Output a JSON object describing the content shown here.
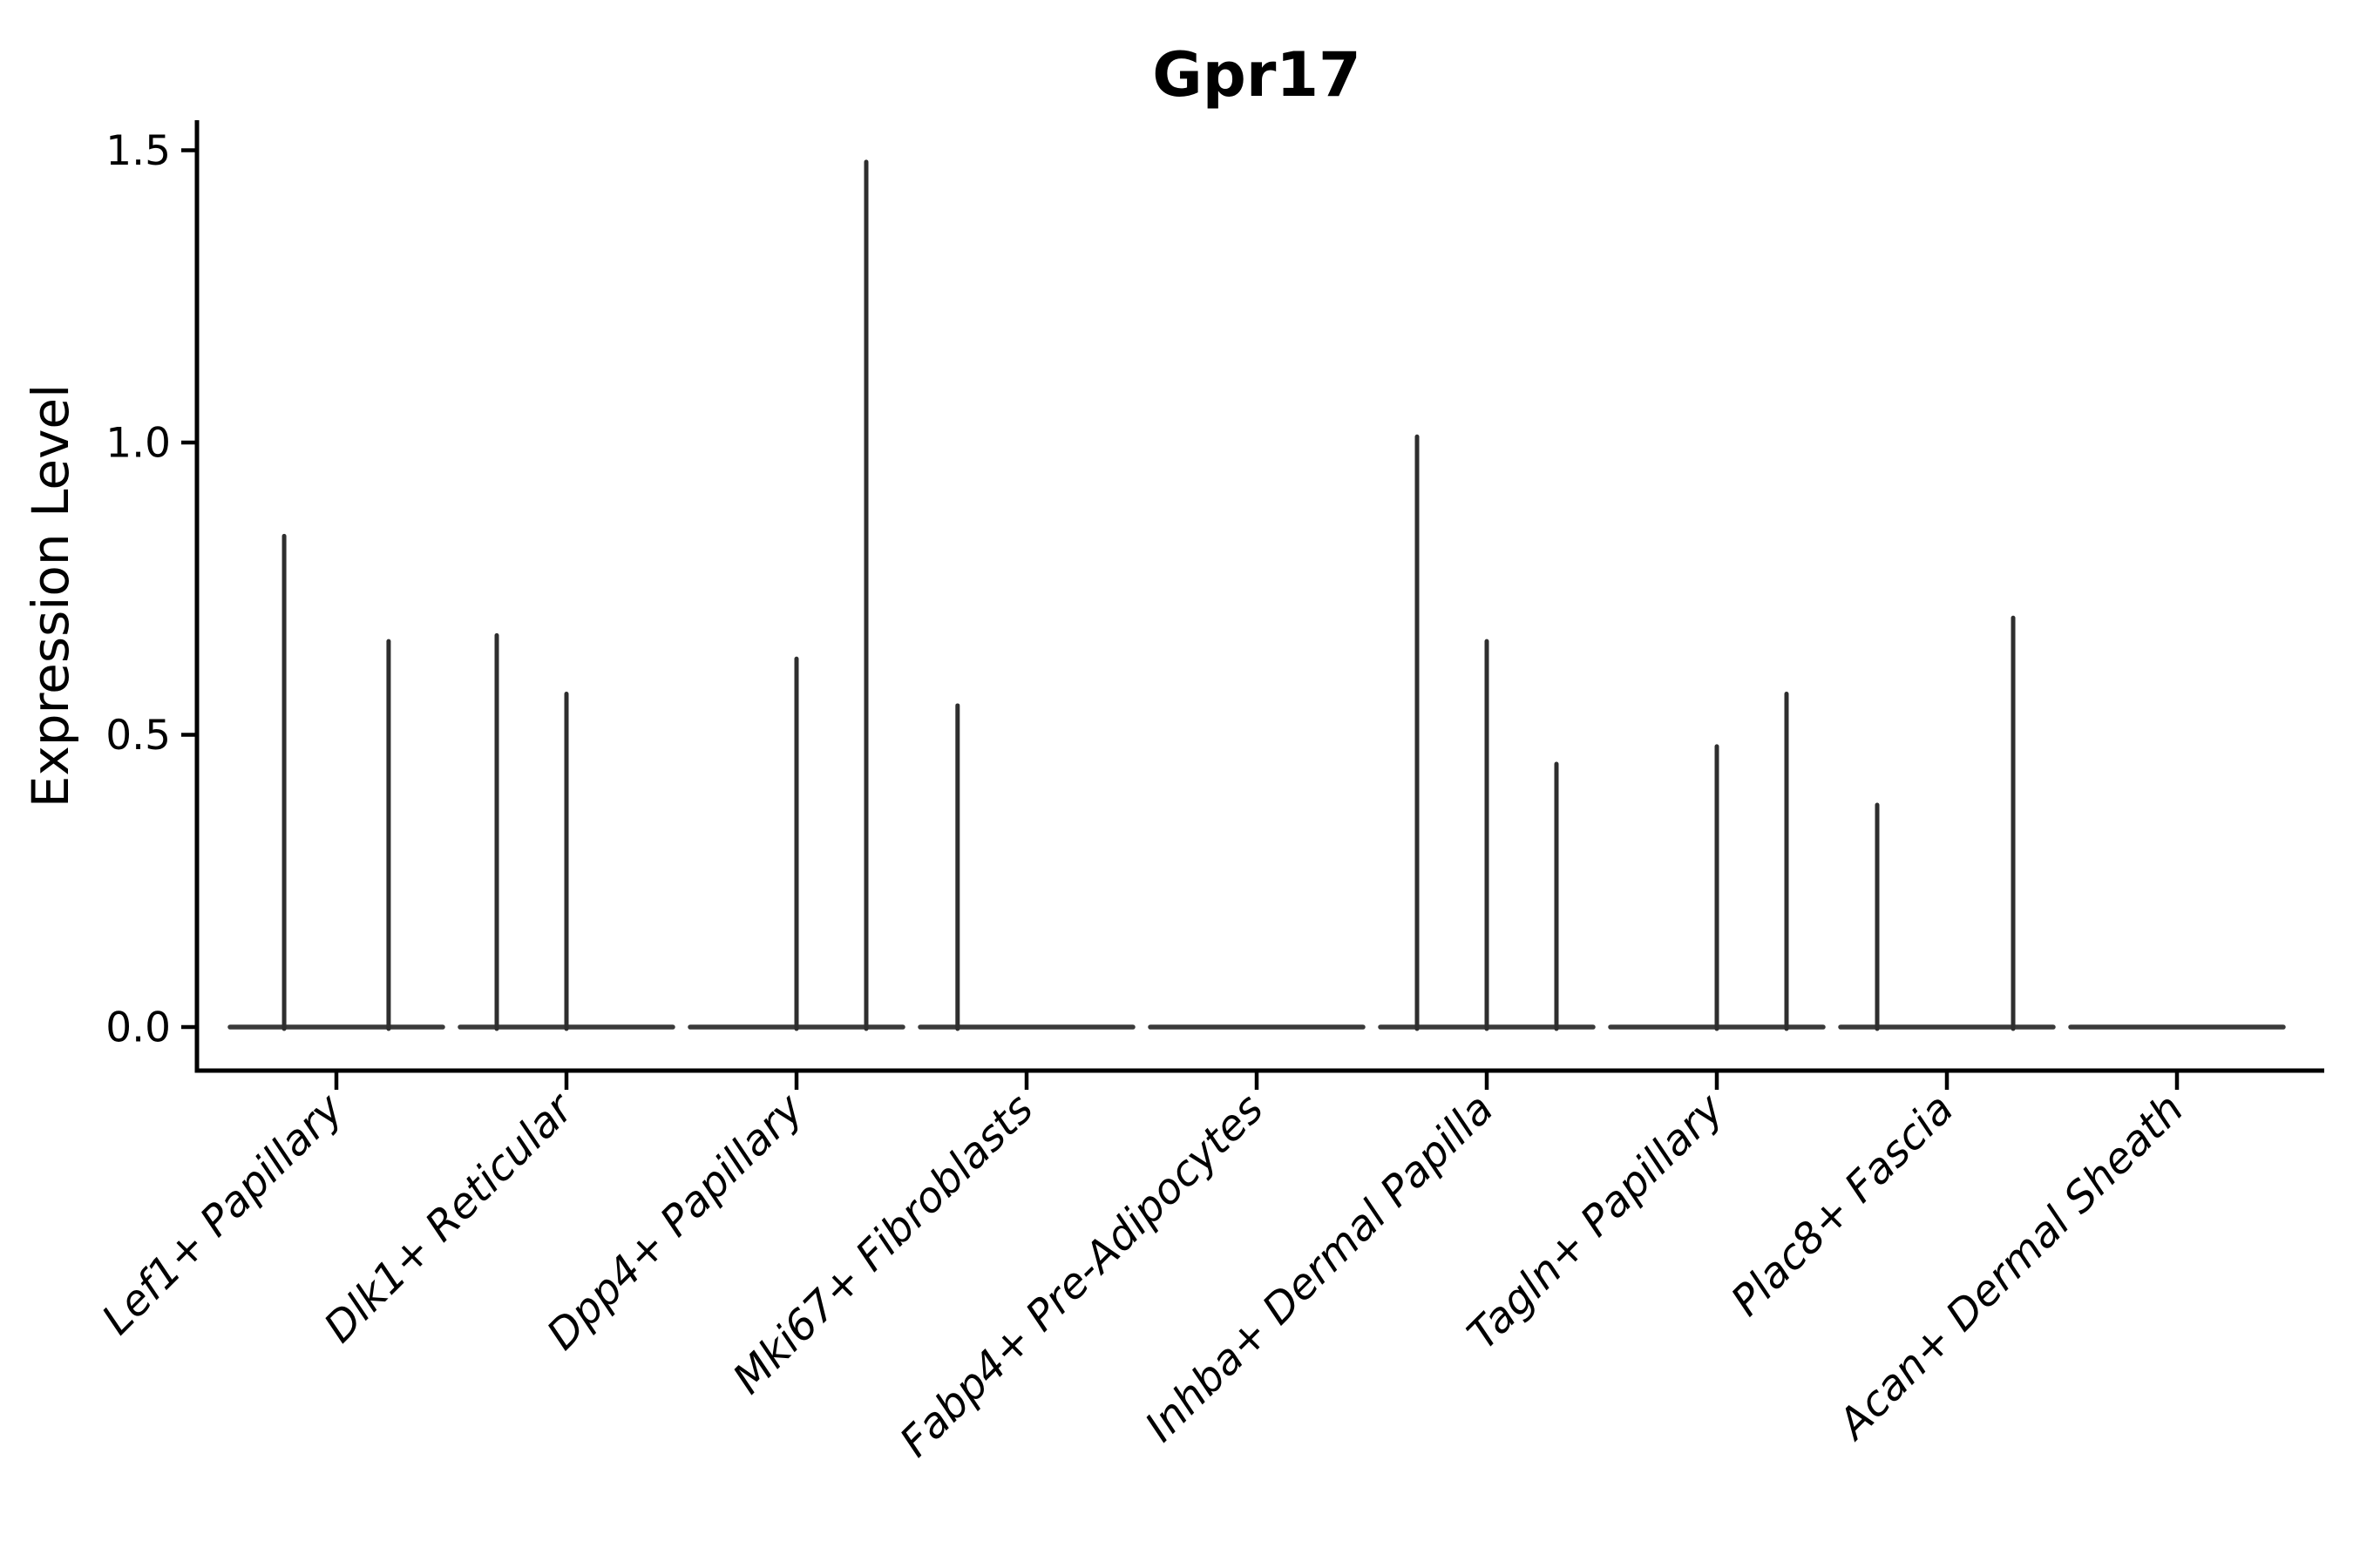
{
  "figure": {
    "background": "#ffffff"
  },
  "chart_data": {
    "type": "violin",
    "title": "Gpr17",
    "ylabel": "Expression Level",
    "xlabel": "",
    "yticks": [
      "0.0",
      "0.5",
      "1.0",
      "1.5"
    ],
    "ylim": [
      -0.075,
      1.55
    ],
    "grid": false,
    "legend": null,
    "x_tick_rotation": -45,
    "x_tick_style": "italic",
    "categories": [
      "Lef1+ Papillary",
      "Dlk1+ Reticular",
      "Dpp4+ Papillary",
      "Mki67+ Fibroblasts",
      "Fabp4+ Pre-Adipocytes",
      "Inhba+ Dermal Papilla",
      "Tagln+ Papillary",
      "Plac8+ Fascia",
      "Acan+ Dermal Sheath"
    ],
    "series": [
      {
        "name": "Lef1+ Papillary",
        "baseline": 0,
        "spikes": [
          {
            "pos": 0.273,
            "max": 0.84
          },
          {
            "pos": 0.727,
            "max": 0.66
          }
        ]
      },
      {
        "name": "Dlk1+ Reticular",
        "baseline": 0,
        "spikes": [
          {
            "pos": 0.197,
            "max": 0.67
          },
          {
            "pos": 0.5,
            "max": 0.57
          }
        ]
      },
      {
        "name": "Dpp4+ Papillary",
        "baseline": 0,
        "spikes": [
          {
            "pos": 0.5,
            "max": 0.63
          },
          {
            "pos": 0.803,
            "max": 1.48
          }
        ]
      },
      {
        "name": "Mki67+ Fibroblasts",
        "baseline": 0,
        "spikes": [
          {
            "pos": 0.2,
            "max": 0.55
          }
        ]
      },
      {
        "name": "Fabp4+ Pre-Adipocytes",
        "baseline": 0,
        "spikes": []
      },
      {
        "name": "Inhba+ Dermal Papilla",
        "baseline": 0,
        "spikes": [
          {
            "pos": 0.197,
            "max": 1.01
          },
          {
            "pos": 0.5,
            "max": 0.66
          },
          {
            "pos": 0.803,
            "max": 0.45
          }
        ]
      },
      {
        "name": "Tagln+ Papillary",
        "baseline": 0,
        "spikes": [
          {
            "pos": 0.5,
            "max": 0.48
          },
          {
            "pos": 0.803,
            "max": 0.57
          }
        ]
      },
      {
        "name": "Plac8+ Fascia",
        "baseline": 0,
        "spikes": [
          {
            "pos": 0.197,
            "max": 0.38
          },
          {
            "pos": 0.788,
            "max": 0.7
          }
        ]
      },
      {
        "name": "Acan+ Dermal Sheath",
        "baseline": 0,
        "spikes": []
      }
    ],
    "colors": {
      "spike": "#2e2e2e",
      "baseline": "#3a3a3a",
      "spine": "#000000",
      "tick": "#000000",
      "text": "#000000"
    }
  }
}
